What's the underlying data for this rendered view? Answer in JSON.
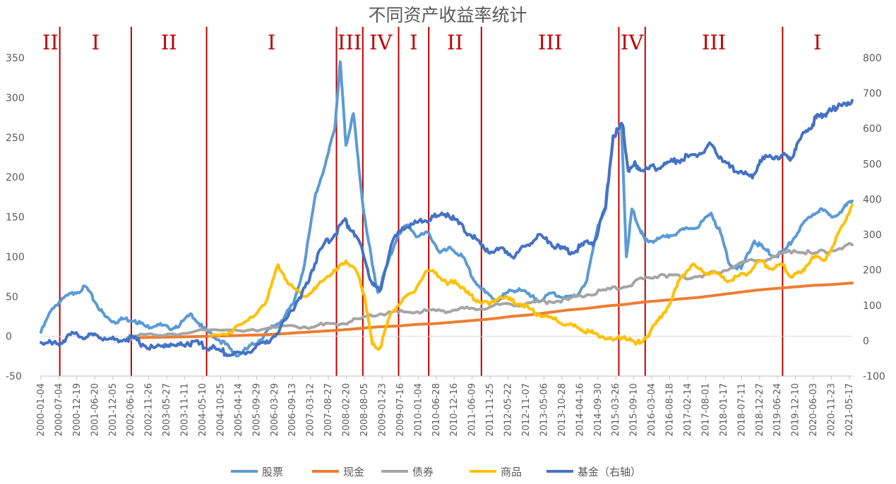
{
  "chart_data": {
    "type": "line",
    "title": "不同资产收益率统计",
    "xlabel": "",
    "ylabel": "",
    "y_left": {
      "lim": [
        -50,
        350
      ],
      "ticks": [
        "-50",
        "0",
        "50",
        "100",
        "150",
        "200",
        "250",
        "300",
        "350"
      ]
    },
    "y_right": {
      "lim": [
        -100,
        800
      ],
      "ticks": [
        "-100",
        "0",
        "100",
        "200",
        "300",
        "400",
        "500",
        "600",
        "700",
        "800"
      ]
    },
    "x_tick_labels": [
      "2000-01-04",
      "2000-07-04",
      "2000-12-19",
      "2001-06-20",
      "2001-12-05",
      "2002-06-10",
      "2002-11-26",
      "2003-05-27",
      "2003-11-11",
      "2004-05-10",
      "2004-10-25",
      "2005-04-14",
      "2005-09-29",
      "2006-03-29",
      "2006-09-13",
      "2007-03-12",
      "2007-08-27",
      "2008-02-20",
      "2008-08-05",
      "2009-01-23",
      "2009-07-16",
      "2010-01-04",
      "2010-06-28",
      "2010-12-16",
      "2011-06-09",
      "2011-11-25",
      "2012-05-22",
      "2012-11-07",
      "2013-05-06",
      "2013-10-28",
      "2014-04-16",
      "2014-09-30",
      "2015-03-26",
      "2015-09-10",
      "2016-03-04",
      "2016-08-18",
      "2017-02-14",
      "2017-08-01",
      "2018-01-17",
      "2018-07-11",
      "2018-12-27",
      "2019-06-24",
      "2019-12-10",
      "2020-06-03",
      "2020-11-23",
      "2021-05-17"
    ],
    "legend_position": "bottom",
    "grid": false,
    "phases": [
      {
        "label": "II",
        "start": 2000.0,
        "end": 2000.5
      },
      {
        "label": "I",
        "start": 2000.5,
        "end": 2002.4
      },
      {
        "label": "II",
        "start": 2002.4,
        "end": 2004.4
      },
      {
        "label": "I",
        "start": 2004.4,
        "end": 2007.85
      },
      {
        "label": "III",
        "start": 2007.85,
        "end": 2008.55
      },
      {
        "label": "IV",
        "start": 2008.55,
        "end": 2009.5
      },
      {
        "label": "I",
        "start": 2009.5,
        "end": 2010.3
      },
      {
        "label": "II",
        "start": 2010.3,
        "end": 2011.7
      },
      {
        "label": "III",
        "start": 2011.7,
        "end": 2015.35
      },
      {
        "label": "IV",
        "start": 2015.35,
        "end": 2016.05
      },
      {
        "label": "III",
        "start": 2016.05,
        "end": 2019.7
      },
      {
        "label": "I",
        "start": 2019.7,
        "end": 2021.55
      }
    ],
    "series": [
      {
        "name": "股票",
        "axis": "left",
        "color": "#5b9bd5",
        "x": [
          2000.0,
          2000.3,
          2000.6,
          2000.9,
          2001.2,
          2001.45,
          2001.7,
          2001.95,
          2002.2,
          2002.5,
          2002.8,
          2003.1,
          2003.4,
          2003.7,
          2004.0,
          2004.3,
          2004.6,
          2004.9,
          2005.2,
          2005.5,
          2005.8,
          2006.1,
          2006.4,
          2006.7,
          2007.0,
          2007.3,
          2007.55,
          2007.8,
          2007.95,
          2008.1,
          2008.3,
          2008.55,
          2008.8,
          2008.95,
          2009.2,
          2009.5,
          2009.75,
          2010.0,
          2010.3,
          2010.6,
          2010.9,
          2011.2,
          2011.5,
          2011.8,
          2012.1,
          2012.4,
          2012.7,
          2013.0,
          2013.3,
          2013.6,
          2013.9,
          2014.2,
          2014.5,
          2014.8,
          2015.0,
          2015.2,
          2015.42,
          2015.55,
          2015.7,
          2015.9,
          2016.05,
          2016.3,
          2016.6,
          2016.9,
          2017.2,
          2017.5,
          2017.8,
          2018.05,
          2018.3,
          2018.6,
          2018.95,
          2019.2,
          2019.5,
          2019.8,
          2020.1,
          2020.4,
          2020.7,
          2021.0,
          2021.3,
          2021.55
        ],
        "y": [
          5,
          35,
          48,
          55,
          62,
          42,
          25,
          18,
          22,
          20,
          12,
          15,
          10,
          15,
          28,
          10,
          0,
          -10,
          -25,
          -15,
          -5,
          10,
          20,
          40,
          90,
          180,
          215,
          260,
          345,
          240,
          280,
          165,
          90,
          55,
          90,
          130,
          140,
          125,
          130,
          105,
          110,
          100,
          70,
          55,
          45,
          55,
          60,
          50,
          45,
          55,
          48,
          50,
          70,
          140,
          160,
          250,
          265,
          100,
          160,
          135,
          120,
          120,
          125,
          130,
          135,
          140,
          155,
          130,
          90,
          85,
          120,
          110,
          100,
          110,
          130,
          150,
          160,
          150,
          160,
          170
        ]
      },
      {
        "name": "现金",
        "axis": "left",
        "color": "#ed7d31",
        "x": [
          2002.3,
          2004.5,
          2006.0,
          2007.0,
          2008.0,
          2008.5,
          2009.0,
          2009.5,
          2010.0,
          2010.5,
          2011.0,
          2011.5,
          2012.0,
          2012.5,
          2013.0,
          2013.5,
          2014.0,
          2014.5,
          2015.0,
          2015.5,
          2016.0,
          2016.5,
          2017.0,
          2017.5,
          2018.0,
          2018.5,
          2019.0,
          2019.5,
          2020.0,
          2020.5,
          2021.0,
          2021.55
        ],
        "y": [
          -2,
          0,
          2,
          5,
          8,
          10,
          12,
          13,
          15,
          16,
          18,
          20,
          22,
          25,
          27,
          30,
          33,
          35,
          38,
          40,
          43,
          45,
          47,
          49,
          52,
          55,
          58,
          60,
          62,
          64,
          65,
          67
        ]
      },
      {
        "name": "债券",
        "axis": "left",
        "color": "#a5a5a5",
        "x": [
          2002.3,
          2003.0,
          2004.0,
          2005.0,
          2006.0,
          2007.0,
          2007.5,
          2008.0,
          2008.5,
          2009.0,
          2009.5,
          2010.0,
          2010.5,
          2011.0,
          2011.5,
          2012.0,
          2012.5,
          2013.0,
          2013.5,
          2014.0,
          2014.5,
          2015.0,
          2015.5,
          2016.0,
          2016.5,
          2017.0,
          2017.5,
          2018.0,
          2018.5,
          2019.0,
          2019.5,
          2020.0,
          2020.5,
          2021.0,
          2021.55
        ],
        "y": [
          -2,
          2,
          5,
          8,
          10,
          12,
          14,
          16,
          22,
          28,
          30,
          31,
          32,
          33,
          35,
          38,
          40,
          42,
          44,
          46,
          52,
          58,
          62,
          72,
          78,
          74,
          76,
          80,
          90,
          95,
          100,
          108,
          104,
          108,
          115
        ]
      },
      {
        "name": "商品",
        "axis": "left",
        "color": "#ffc000",
        "x": [
          2004.5,
          2005.0,
          2005.5,
          2006.0,
          2006.3,
          2006.6,
          2007.0,
          2007.3,
          2007.6,
          2007.9,
          2008.1,
          2008.4,
          2008.6,
          2008.8,
          2009.0,
          2009.3,
          2009.6,
          2009.9,
          2010.2,
          2010.5,
          2010.8,
          2011.0,
          2011.3,
          2011.6,
          2011.9,
          2012.2,
          2012.5,
          2012.8,
          2013.1,
          2013.4,
          2013.7,
          2014.0,
          2014.3,
          2014.6,
          2014.9,
          2015.2,
          2015.5,
          2015.8,
          2016.1,
          2016.4,
          2016.7,
          2017.0,
          2017.3,
          2017.6,
          2017.9,
          2018.2,
          2018.5,
          2018.8,
          2019.1,
          2019.4,
          2019.7,
          2019.9,
          2020.2,
          2020.5,
          2020.8,
          2021.1,
          2021.3,
          2021.55
        ],
        "y": [
          0,
          5,
          20,
          45,
          90,
          65,
          50,
          60,
          75,
          85,
          95,
          80,
          50,
          -10,
          -15,
          30,
          45,
          55,
          80,
          80,
          65,
          70,
          55,
          45,
          40,
          50,
          45,
          40,
          30,
          25,
          20,
          15,
          10,
          5,
          0,
          -5,
          0,
          -10,
          0,
          20,
          40,
          75,
          90,
          80,
          80,
          70,
          75,
          80,
          95,
          85,
          90,
          75,
          80,
          100,
          95,
          120,
          140,
          165
        ]
      },
      {
        "name": "基金（右轴）",
        "axis": "right",
        "color": "#4472c4",
        "x": [
          2000.0,
          2000.3,
          2000.6,
          2000.9,
          2001.2,
          2001.5,
          2001.8,
          2002.1,
          2002.4,
          2002.7,
          2003.0,
          2003.3,
          2003.6,
          2003.9,
          2004.2,
          2004.5,
          2004.8,
          2005.1,
          2005.4,
          2005.7,
          2006.0,
          2006.3,
          2006.6,
          2006.9,
          2007.2,
          2007.5,
          2007.8,
          2008.05,
          2008.3,
          2008.55,
          2008.8,
          2009.0,
          2009.3,
          2009.6,
          2009.9,
          2010.2,
          2010.5,
          2010.8,
          2011.1,
          2011.4,
          2011.7,
          2012.0,
          2012.3,
          2012.6,
          2012.9,
          2013.2,
          2013.5,
          2013.8,
          2014.1,
          2014.4,
          2014.7,
          2015.0,
          2015.2,
          2015.45,
          2015.6,
          2015.8,
          2016.0,
          2016.3,
          2016.6,
          2016.9,
          2017.2,
          2017.5,
          2017.8,
          2018.05,
          2018.3,
          2018.6,
          2018.9,
          2019.1,
          2019.4,
          2019.7,
          2019.9,
          2020.1,
          2020.4,
          2020.6,
          2020.8,
          2021.0,
          2021.2,
          2021.4,
          2021.55
        ],
        "y": [
          -5,
          -10,
          0,
          20,
          10,
          15,
          5,
          0,
          10,
          -10,
          -20,
          -10,
          -15,
          -5,
          -10,
          -20,
          -30,
          -40,
          -35,
          -20,
          0,
          20,
          80,
          120,
          200,
          270,
          300,
          340,
          310,
          250,
          160,
          140,
          270,
          320,
          330,
          340,
          350,
          360,
          330,
          300,
          270,
          250,
          260,
          240,
          270,
          300,
          280,
          260,
          250,
          270,
          280,
          380,
          580,
          610,
          480,
          500,
          480,
          490,
          500,
          510,
          520,
          530,
          555,
          520,
          490,
          480,
          460,
          510,
          520,
          525,
          510,
          560,
          600,
          630,
          640,
          650,
          670,
          665,
          680
        ]
      }
    ]
  }
}
